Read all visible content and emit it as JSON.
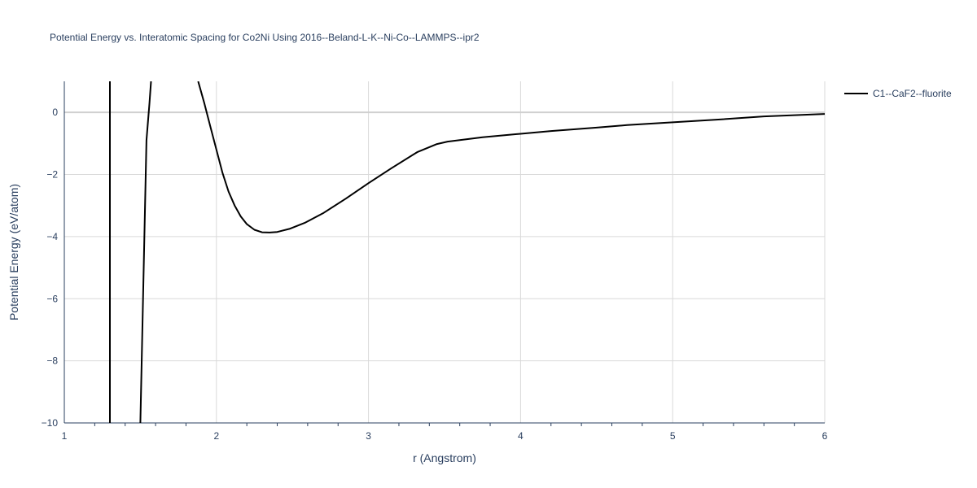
{
  "chart_data": {
    "type": "line",
    "title": "Potential Energy vs. Interatomic Spacing for Co2Ni Using 2016--Beland-L-K--Ni-Co--LAMMPS--ipr2",
    "xlabel": "r (Angstrom)",
    "ylabel": "Potential Energy (eV/atom)",
    "xlim": [
      1,
      6
    ],
    "ylim": [
      -10,
      1
    ],
    "xticks": [
      1,
      2,
      3,
      4,
      5,
      6
    ],
    "yticks": [
      0,
      -2,
      -4,
      -6,
      -8,
      -10
    ],
    "ytick_labels": [
      "0",
      "−2",
      "−4",
      "−6",
      "−8",
      "−10"
    ],
    "grid": true,
    "legend_position": "top-right",
    "line_color": "#000000",
    "series": [
      {
        "name": "C1--CaF2--fluorite",
        "segments": [
          {
            "x": [
              1.3,
              1.3
            ],
            "y": [
              1.0,
              -10.0
            ]
          },
          {
            "x": [
              1.5,
              1.52,
              1.54,
              1.56,
              1.57
            ],
            "y": [
              -10.0,
              -5.5,
              -0.9,
              0.3,
              1.0
            ]
          },
          {
            "x": [
              1.88,
              1.92,
              1.96,
              2.0,
              2.04,
              2.08,
              2.12,
              2.16,
              2.2,
              2.25,
              2.3,
              2.35,
              2.4,
              2.48,
              2.58,
              2.7,
              2.85,
              3.0,
              3.15,
              3.32,
              3.45,
              3.52,
              3.6,
              3.75,
              4.0,
              4.2,
              4.5,
              4.7,
              5.0,
              5.3,
              5.6,
              6.0
            ],
            "y": [
              1.0,
              0.3,
              -0.45,
              -1.2,
              -1.95,
              -2.55,
              -3.0,
              -3.35,
              -3.6,
              -3.78,
              -3.86,
              -3.87,
              -3.85,
              -3.75,
              -3.56,
              -3.25,
              -2.78,
              -2.28,
              -1.8,
              -1.28,
              -1.02,
              -0.94,
              -0.89,
              -0.8,
              -0.69,
              -0.6,
              -0.49,
              -0.41,
              -0.32,
              -0.23,
              -0.13,
              -0.05
            ]
          }
        ]
      }
    ]
  }
}
